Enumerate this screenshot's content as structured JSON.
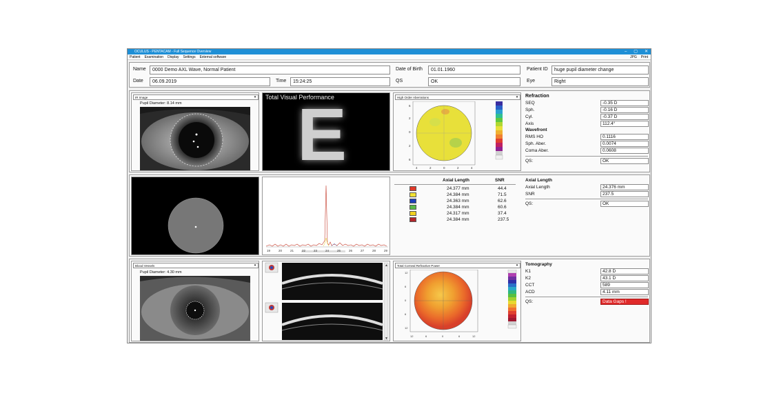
{
  "window": {
    "title": "OCULUS - PENTACAM - Full Sequence Overview",
    "controls": [
      "–",
      "▢",
      "✕"
    ]
  },
  "menu": {
    "items": [
      "Patient",
      "Examination",
      "Display",
      "Settings",
      "External software"
    ],
    "right": [
      "JPG",
      "Print"
    ]
  },
  "patient": {
    "name_label": "Name",
    "name_value": "0000 Demo AXL Wave, Normal Patient",
    "dob_label": "Date of Birth",
    "dob_value": "01.01.1960",
    "pid_label": "Patient ID",
    "pid_value": "huge pupil diameter change",
    "date_label": "Date",
    "date_value": "06.09.2019",
    "time_label": "Time",
    "time_value": "15:24:25",
    "qs_label": "QS",
    "qs_value": "OK",
    "eye_label": "Eye",
    "eye_value": "Right"
  },
  "row1": {
    "image_select": "IR Image",
    "pupil_diameter": "Pupil Diameter: 8.14 mm",
    "tvp_title": "Total Visual Performance",
    "tvp_letter": "E",
    "hoa_select": "High Order Aberrations",
    "refraction": {
      "title": "Refraction",
      "items": [
        {
          "label": "SEQ",
          "value": "-0.35 D"
        },
        {
          "label": "Sph.",
          "value": "-0.16 D"
        },
        {
          "label": "Cyl.",
          "value": "-0.37 D"
        },
        {
          "label": "Axis",
          "value": "112.4°"
        }
      ]
    },
    "wavefront": {
      "title": "Wavefront",
      "items": [
        {
          "label": "RMS HO",
          "value": "0.1116"
        },
        {
          "label": "Sph. Aber.",
          "value": "0.0074"
        },
        {
          "label": "Coma Aber.",
          "value": "0.0608"
        }
      ]
    },
    "qs_label": "QS:",
    "qs_value": "OK"
  },
  "row2": {
    "table_headers": {
      "axial": "Axial Length",
      "snr": "SNR"
    },
    "measurements": [
      {
        "color": "#e03a2a",
        "axial": "24.377 mm",
        "snr": "44.4"
      },
      {
        "color": "#f2e233",
        "axial": "24.384 mm",
        "snr": "71.5"
      },
      {
        "color": "#1d3fb8",
        "axial": "24.363 mm",
        "snr": "62.6"
      },
      {
        "color": "#58b848",
        "axial": "24.384 mm",
        "snr": "60.6"
      },
      {
        "color": "#f0d020",
        "axial": "24.317 mm",
        "snr": "37.4"
      },
      {
        "color": "#b3262a",
        "axial": "24.384 mm",
        "snr": "237.5"
      }
    ],
    "axis_ticks": [
      "19",
      "20",
      "21",
      "22",
      "23",
      "24",
      "25",
      "26",
      "27",
      "28",
      "29"
    ],
    "summary_title": "Axial Length",
    "summary": [
      {
        "label": "Axial Length",
        "value": "24.376 mm"
      },
      {
        "label": "SNR",
        "value": "237.5"
      }
    ],
    "qs_label": "QS:",
    "qs_value": "OK"
  },
  "row3": {
    "image_select": "Blood Vessels",
    "pupil_diameter": "Pupil Diameter: 4.30 mm",
    "map_select": "Total Corneal Refractive Power",
    "tomography": {
      "title": "Tomography",
      "items": [
        {
          "label": "K1",
          "value": "42.8 D"
        },
        {
          "label": "K2",
          "value": "43.1 D"
        },
        {
          "label": "CCT",
          "value": "589"
        },
        {
          "label": "ACD",
          "value": "4.11 mm"
        }
      ]
    },
    "qs_label": "QS:",
    "qs_value": "Data Gaps !",
    "qs_color": "#e02a2a"
  }
}
